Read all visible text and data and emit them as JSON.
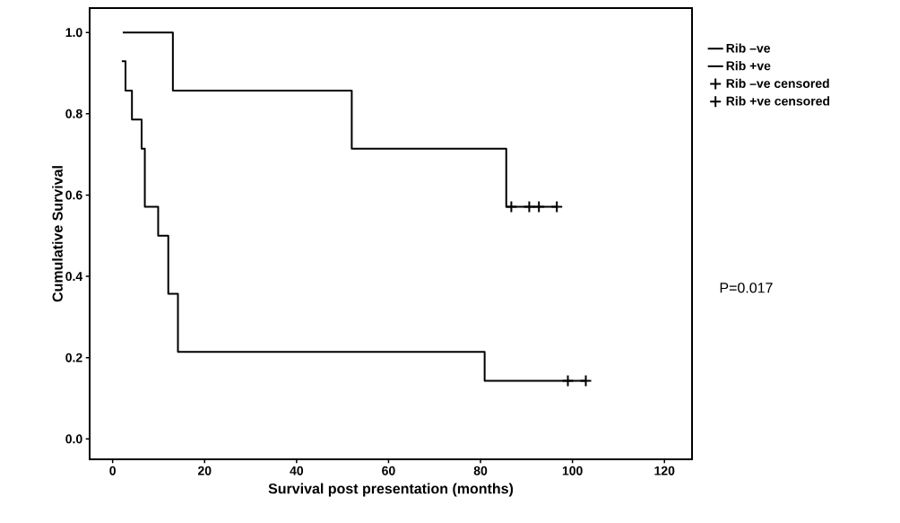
{
  "chart_data": {
    "type": "step",
    "xlabel": "Survival post presentation (months)",
    "ylabel": "Cumulative Survival",
    "xlim": [
      -5,
      126
    ],
    "ylim": [
      -0.05,
      1.06
    ],
    "xticks": [
      0,
      20,
      40,
      60,
      80,
      100,
      120
    ],
    "yticks": [
      {
        "value": 0,
        "label": "0.0"
      },
      {
        "value": 0.2,
        "label": "0.2"
      },
      {
        "value": 0.4,
        "label": "0.4"
      },
      {
        "value": 0.6,
        "label": "0.6"
      },
      {
        "value": 0.8,
        "label": "0.8"
      },
      {
        "value": 1.0,
        "label": "1.0"
      }
    ],
    "grid": false,
    "legend": "top right",
    "line_style": "solid",
    "annotations": [
      "P=0.017"
    ],
    "series": [
      {
        "name": "Rib –ve",
        "color": "#000000",
        "x": [
          2.2,
          13.1,
          52,
          85.6,
          96.6
        ],
        "values": [
          1.0,
          0.857,
          0.714,
          0.571,
          0.571
        ]
      },
      {
        "name": "Rib +ve",
        "color": "#000000",
        "x": [
          2.0,
          2.8,
          4.2,
          6.3,
          7.0,
          9.9,
          12.1,
          14.2,
          80.9,
          102.9
        ],
        "values": [
          0.929,
          0.857,
          0.786,
          0.714,
          0.571,
          0.5,
          0.357,
          0.214,
          0.143,
          0.143
        ]
      },
      {
        "name": "Rib –ve censored",
        "type": "scatter",
        "marker": "cross",
        "color": "#000000",
        "x": [
          86.7,
          90.6,
          92.7,
          96.6
        ],
        "values": [
          0.571,
          0.571,
          0.571,
          0.571
        ]
      },
      {
        "name": "Rib +ve censored",
        "type": "scatter",
        "marker": "cross",
        "color": "#000000",
        "x": [
          99,
          102.9
        ],
        "values": [
          0.143,
          0.143
        ]
      }
    ]
  }
}
